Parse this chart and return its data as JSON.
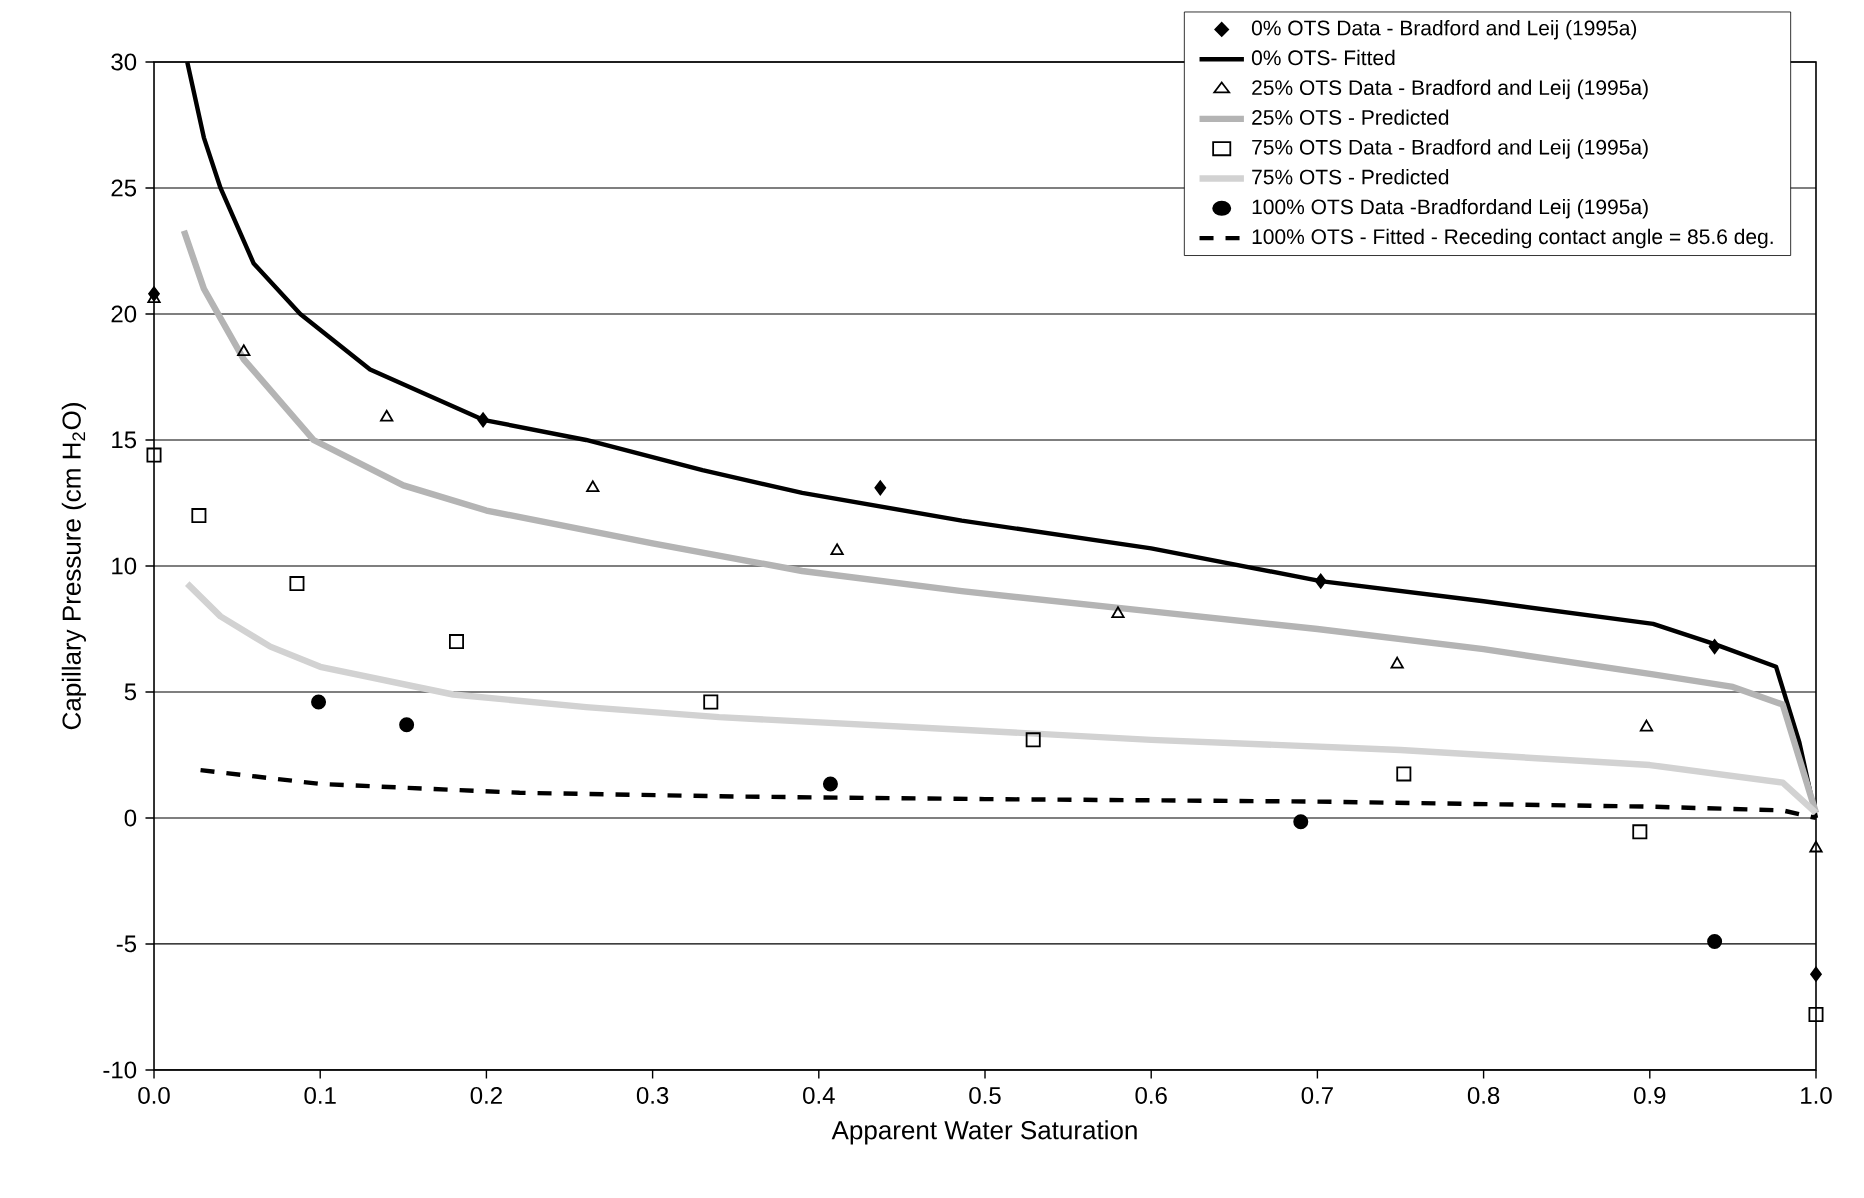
{
  "chart_data": {
    "type": "scatter",
    "xlabel": "Apparent Water Saturation",
    "ylabel": "Capillary Pressure (cm H$_{2}$O)",
    "xlim": [
      0,
      1
    ],
    "ylim": [
      -10,
      30
    ],
    "xticks": [
      {
        "value": 0,
        "label": "0.0"
      },
      0.1,
      0.2,
      0.3,
      0.4,
      0.5,
      0.6,
      0.7,
      0.8,
      0.9,
      {
        "value": 1,
        "label": "1.0"
      }
    ],
    "yticks": [
      -10,
      -5,
      0,
      5,
      10,
      15,
      20,
      25,
      30
    ],
    "grid": "y",
    "legend": "top right",
    "series": [
      {
        "name": "0% OTS Data - Bradford and Leij (1995a)",
        "marker": "diamond",
        "color": "#000000",
        "x": [
          0.0,
          0.198,
          0.437,
          0.702,
          0.939,
          1.0
        ],
        "values": [
          20.8,
          15.8,
          13.1,
          9.4,
          6.8,
          -6.2
        ]
      },
      {
        "name": "0% OTS- Fitted",
        "type": "line",
        "marker": "none",
        "line_style": "solid",
        "color": "#000000",
        "x": [
          0.02,
          0.03,
          0.04,
          0.06,
          0.088,
          0.13,
          0.198,
          0.26,
          0.33,
          0.39,
          0.486,
          0.6,
          0.702,
          0.8,
          0.902,
          0.939,
          0.976,
          0.99,
          1.0
        ],
        "values": [
          30.0,
          27.0,
          25.0,
          22.0,
          20.0,
          17.8,
          15.8,
          15.0,
          13.8,
          12.9,
          11.8,
          10.7,
          9.4,
          8.6,
          7.7,
          6.9,
          6.0,
          3.0,
          0.0
        ]
      },
      {
        "name": "25% OTS Data - Bradford and Leij (1995a)",
        "marker": "triangle",
        "color": "#000000",
        "x": [
          0.0,
          0.054,
          0.14,
          0.264,
          0.411,
          0.58,
          0.748,
          0.898,
          1.0
        ],
        "values": [
          20.6,
          18.5,
          15.9,
          13.1,
          10.6,
          8.1,
          6.1,
          3.6,
          -1.2
        ]
      },
      {
        "name": "25% OTS - Predicted",
        "type": "line",
        "marker": "none",
        "line_style": "solid",
        "color": "#b4b4b4",
        "x": [
          0.018,
          0.03,
          0.054,
          0.096,
          0.15,
          0.2,
          0.3,
          0.39,
          0.486,
          0.6,
          0.7,
          0.8,
          0.902,
          0.95,
          0.98,
          1.0
        ],
        "values": [
          23.3,
          21.0,
          18.2,
          15.0,
          13.2,
          12.2,
          10.9,
          9.8,
          9.0,
          8.2,
          7.5,
          6.7,
          5.7,
          5.2,
          4.5,
          0.2
        ]
      },
      {
        "name": "75% OTS Data - Bradford and Leij (1995a)",
        "marker": "square",
        "color": "#000000",
        "x": [
          0.0,
          0.027,
          0.086,
          0.182,
          0.335,
          0.529,
          0.752,
          0.894,
          1.0
        ],
        "values": [
          14.4,
          12.0,
          9.3,
          7.0,
          4.6,
          3.1,
          1.75,
          -0.55,
          -7.8
        ]
      },
      {
        "name": "75% OTS - Predicted",
        "type": "line",
        "marker": "none",
        "line_style": "solid",
        "color": "#d2d2d2",
        "x": [
          0.02,
          0.04,
          0.07,
          0.1,
          0.18,
          0.26,
          0.34,
          0.486,
          0.6,
          0.75,
          0.9,
          0.98,
          1.0
        ],
        "values": [
          9.3,
          8.0,
          6.8,
          6.0,
          4.9,
          4.4,
          4.0,
          3.5,
          3.1,
          2.7,
          2.1,
          1.4,
          0.2
        ]
      },
      {
        "name": "100% OTS Data -Bradfordand Leij (1995a)",
        "marker": "circle",
        "color": "#000000",
        "x": [
          0.099,
          0.152,
          0.407,
          0.69,
          0.939
        ],
        "values": [
          4.6,
          3.7,
          1.35,
          -0.15,
          -4.9
        ]
      },
      {
        "name": "100% OTS - Fitted - Receding contact angle =  85.6 deg.",
        "type": "line",
        "marker": "none",
        "line_style": "dashed",
        "color": "#000000",
        "x": [
          0.028,
          0.1,
          0.22,
          0.35,
          0.5,
          0.7,
          0.9,
          0.98,
          1.0
        ],
        "values": [
          1.9,
          1.35,
          1.0,
          0.85,
          0.75,
          0.65,
          0.45,
          0.3,
          0.0
        ]
      }
    ]
  }
}
